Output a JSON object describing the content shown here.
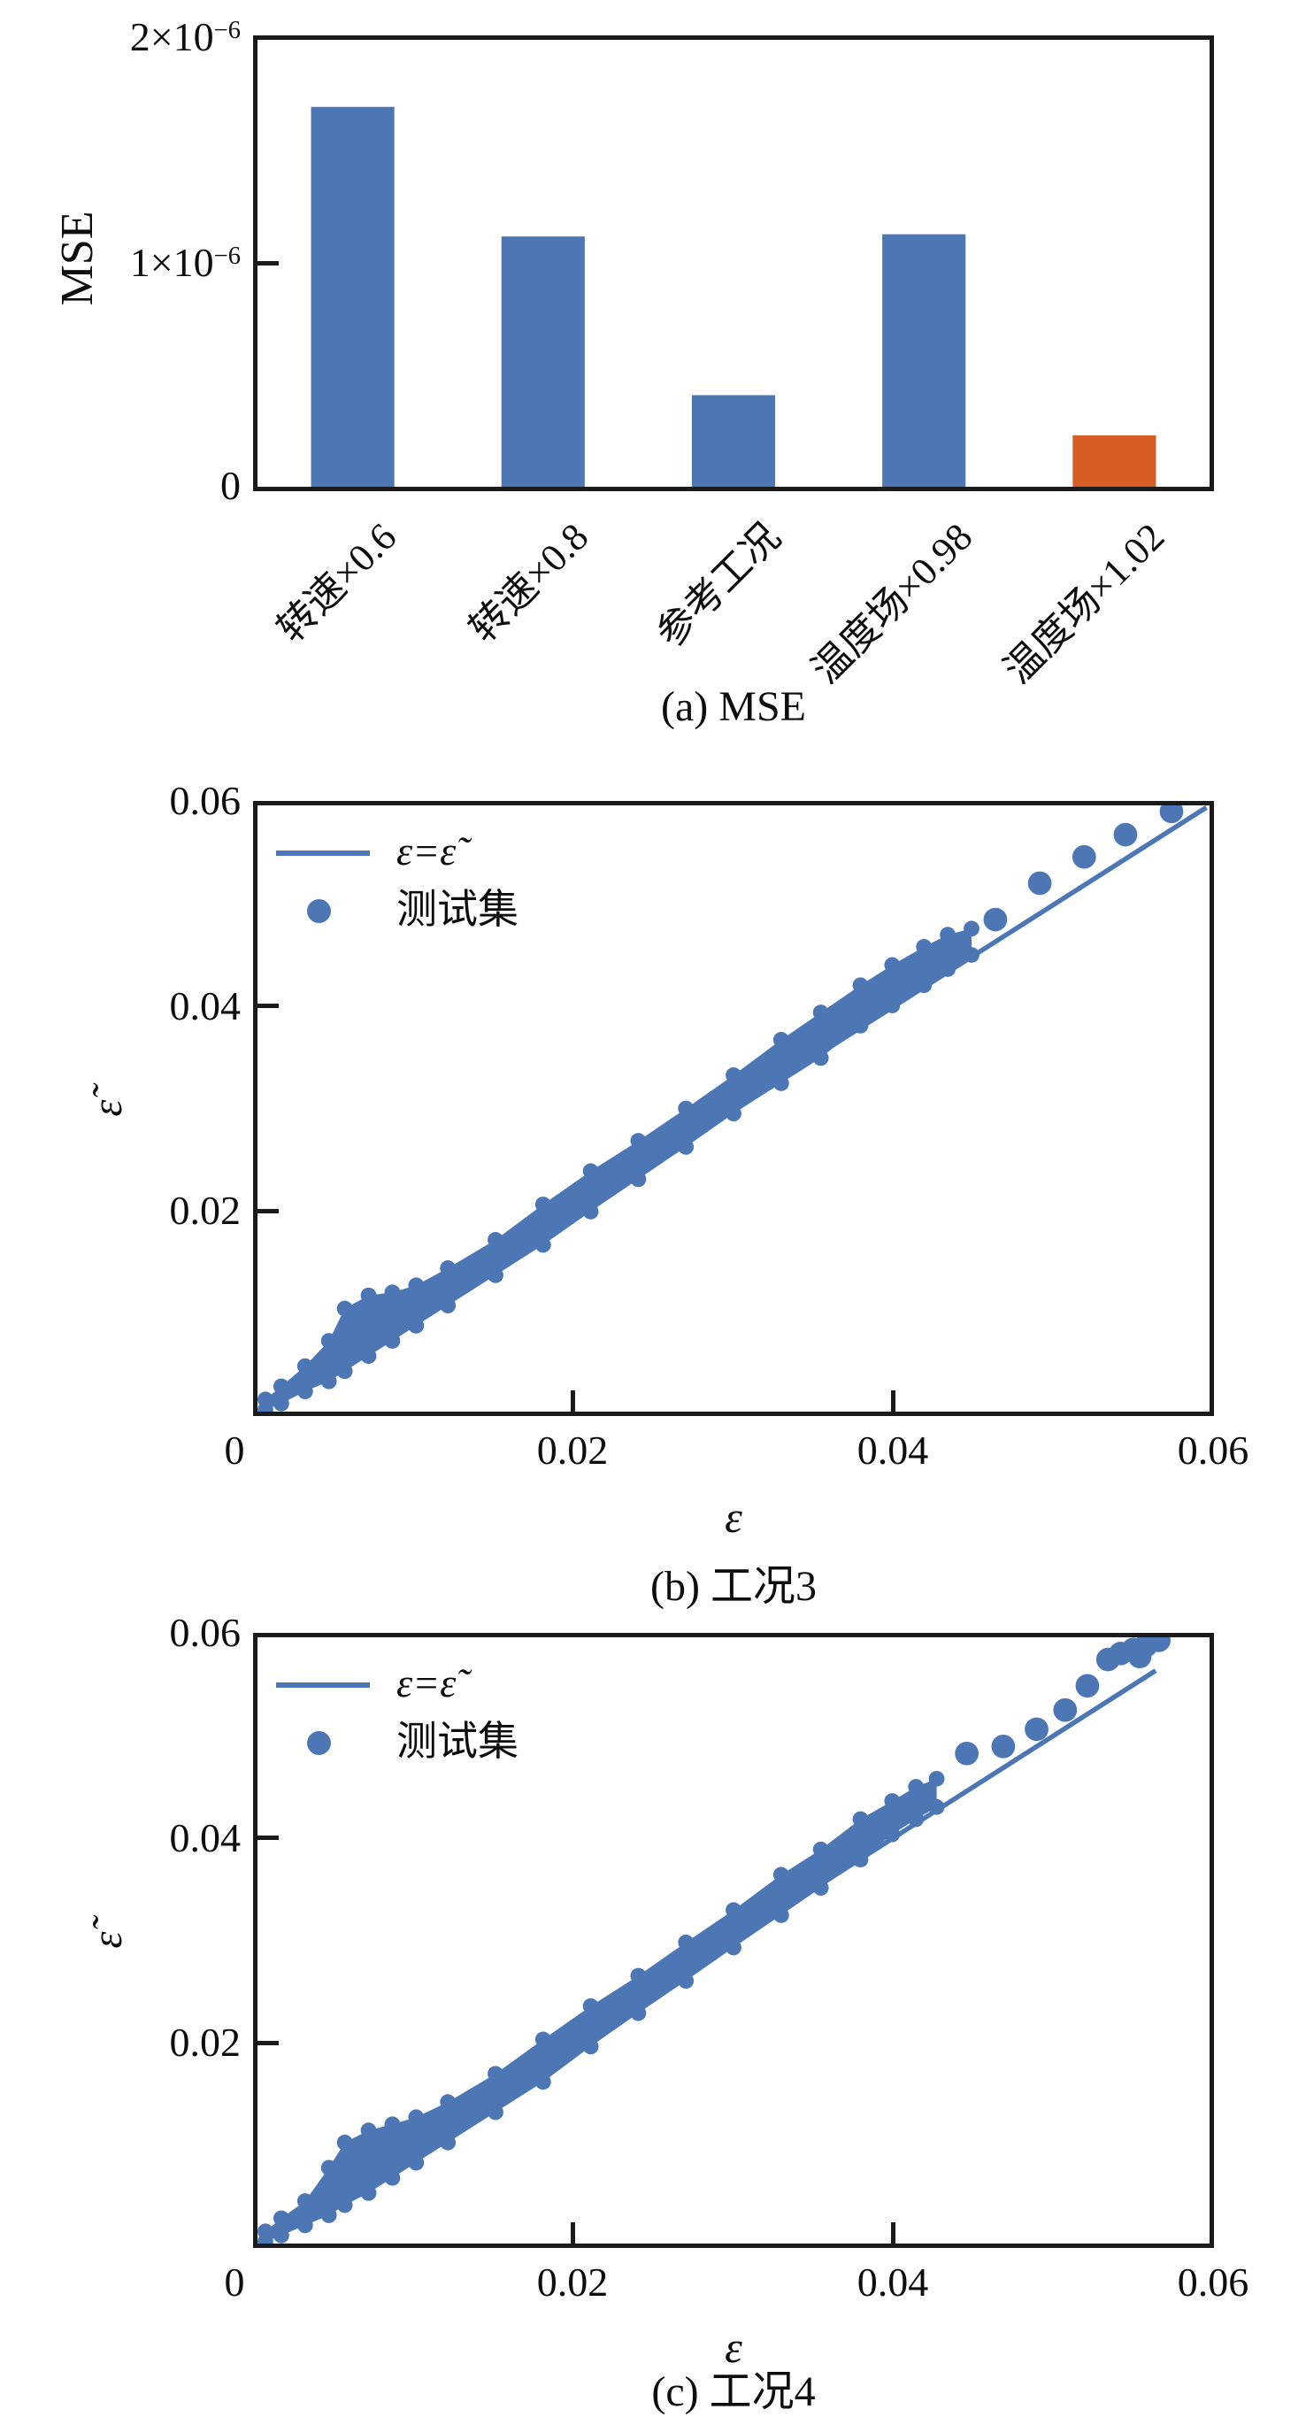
{
  "palette": {
    "blue": "#4d77b4",
    "orange": "#d65e26",
    "axis": "#1b1b1b"
  },
  "chart_data": [
    {
      "type": "bar",
      "caption": "(a) MSE",
      "ylabel": "MSE",
      "categories": [
        "转速×0.6",
        "转速×0.8",
        "参考工况",
        "温度场×0.98",
        "温度场×1.02"
      ],
      "values": [
        1.7e-06,
        1.12e-06,
        4.1e-07,
        1.13e-06,
        2.3e-07
      ],
      "colors": [
        "#4d77b4",
        "#4d77b4",
        "#4d77b4",
        "#4d77b4",
        "#d65e26"
      ],
      "ylim": [
        0,
        2e-06
      ],
      "yticks": [
        {
          "value": 0,
          "label": "0",
          "base": "0",
          "sup": ""
        },
        {
          "value": 1e-06,
          "label": "1×10⁻⁶",
          "base": "1×10",
          "sup": "−6"
        },
        {
          "value": 2e-06,
          "label": "2×10⁻⁶",
          "base": "2×10",
          "sup": "−6"
        }
      ],
      "grid": false,
      "legend": []
    },
    {
      "type": "scatter",
      "caption": "(b) 工况3",
      "xlabel": "ε",
      "ylabel": "ε̃",
      "xlim": [
        0,
        0.06
      ],
      "ylim": [
        0,
        0.06
      ],
      "xtick_labels": [
        "0",
        "0.02",
        "0.04",
        "0.06"
      ],
      "xtick_values": [
        0,
        0.02,
        0.04,
        0.06
      ],
      "ytick_labels": [
        "0.02",
        "0.04",
        "0.06"
      ],
      "ytick_values": [
        0.02,
        0.04,
        0.06
      ],
      "legend": [
        {
          "type": "line",
          "label": "ε=ε̃"
        },
        {
          "type": "dot",
          "label": "测试集"
        }
      ],
      "identity_line": [
        0.0005,
        0.0005,
        0.0598,
        0.0598
      ],
      "color": "#4d77b4",
      "band": [
        [
          0.0005,
          0.0002,
          0.0012
        ],
        [
          0.0015,
          0.0008,
          0.0025
        ],
        [
          0.003,
          0.002,
          0.0045
        ],
        [
          0.0045,
          0.003,
          0.007
        ],
        [
          0.0055,
          0.004,
          0.0102
        ],
        [
          0.007,
          0.0055,
          0.0115
        ],
        [
          0.0085,
          0.007,
          0.0118
        ],
        [
          0.01,
          0.0085,
          0.0125
        ],
        [
          0.012,
          0.0105,
          0.0142
        ],
        [
          0.015,
          0.0135,
          0.017
        ],
        [
          0.018,
          0.0165,
          0.0205
        ],
        [
          0.021,
          0.0198,
          0.0238
        ],
        [
          0.024,
          0.023,
          0.0268
        ],
        [
          0.027,
          0.0262,
          0.03
        ],
        [
          0.03,
          0.0295,
          0.0333
        ],
        [
          0.033,
          0.0325,
          0.0368
        ],
        [
          0.0355,
          0.035,
          0.0395
        ],
        [
          0.038,
          0.0382,
          0.0422
        ],
        [
          0.04,
          0.0402,
          0.0442
        ],
        [
          0.042,
          0.0422,
          0.046
        ],
        [
          0.0435,
          0.0438,
          0.0472
        ],
        [
          0.045,
          0.0452,
          0.0478
        ]
      ],
      "outliers": [
        [
          0.0465,
          0.0487
        ],
        [
          0.0493,
          0.0523
        ],
        [
          0.0521,
          0.0549
        ],
        [
          0.0547,
          0.0571
        ],
        [
          0.0576,
          0.0594
        ]
      ]
    },
    {
      "type": "scatter",
      "caption": "(c) 工况4",
      "xlabel": "ε",
      "ylabel": "ε̃",
      "xlim": [
        0,
        0.06
      ],
      "ylim": [
        0,
        0.06
      ],
      "xtick_labels": [
        "0",
        "0.02",
        "0.04",
        "0.06"
      ],
      "xtick_values": [
        0,
        0.02,
        0.04,
        0.06
      ],
      "ytick_labels": [
        "0.02",
        "0.04",
        "0.06"
      ],
      "ytick_values": [
        0.02,
        0.04,
        0.06
      ],
      "legend": [
        {
          "type": "line",
          "label": "ε=ε̃"
        },
        {
          "type": "dot",
          "label": "测试集"
        }
      ],
      "identity_line": [
        0.0005,
        0.0005,
        0.0566,
        0.0567
      ],
      "color": "#4d77b4",
      "band": [
        [
          0.0005,
          0.0002,
          0.0012
        ],
        [
          0.0015,
          0.0008,
          0.0025
        ],
        [
          0.003,
          0.0018,
          0.0042
        ],
        [
          0.0045,
          0.0028,
          0.0075
        ],
        [
          0.0055,
          0.0038,
          0.01
        ],
        [
          0.007,
          0.005,
          0.0112
        ],
        [
          0.0085,
          0.0065,
          0.0118
        ],
        [
          0.01,
          0.008,
          0.0125
        ],
        [
          0.012,
          0.01,
          0.014
        ],
        [
          0.015,
          0.013,
          0.0168
        ],
        [
          0.018,
          0.016,
          0.0202
        ],
        [
          0.021,
          0.0195,
          0.0235
        ],
        [
          0.024,
          0.0228,
          0.0265
        ],
        [
          0.027,
          0.026,
          0.0298
        ],
        [
          0.03,
          0.0293,
          0.033
        ],
        [
          0.033,
          0.0325,
          0.0365
        ],
        [
          0.0355,
          0.0352,
          0.039
        ],
        [
          0.038,
          0.038,
          0.042
        ],
        [
          0.04,
          0.0405,
          0.0438
        ],
        [
          0.0415,
          0.042,
          0.0452
        ],
        [
          0.0428,
          0.0432,
          0.046
        ]
      ],
      "outliers": [
        [
          0.0447,
          0.0485
        ],
        [
          0.047,
          0.0492
        ],
        [
          0.0491,
          0.0509
        ],
        [
          0.0509,
          0.0528
        ],
        [
          0.0523,
          0.0552
        ],
        [
          0.0536,
          0.0578
        ],
        [
          0.0544,
          0.0584
        ],
        [
          0.0552,
          0.0588
        ],
        [
          0.056,
          0.0592
        ],
        [
          0.0568,
          0.0597
        ],
        [
          0.0556,
          0.0581
        ]
      ]
    }
  ]
}
